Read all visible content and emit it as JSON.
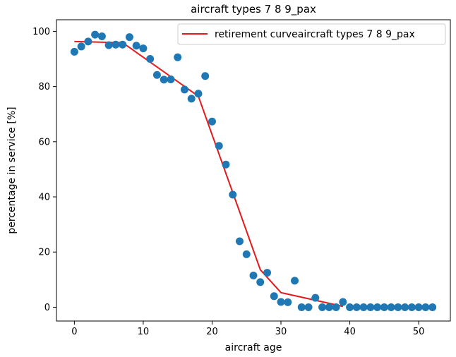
{
  "chart_data": {
    "type": "scatter",
    "title": "aircraft types 7 8 9_pax",
    "xlabel": "aircraft age",
    "ylabel": "percentage in service [%]",
    "xlim": [
      -2.6,
      54.6
    ],
    "ylim": [
      -5.0,
      104.2
    ],
    "xticks": [
      0,
      10,
      20,
      30,
      40,
      50
    ],
    "yticks": [
      0,
      20,
      40,
      60,
      80,
      100
    ],
    "grid": false,
    "legend_position": "top-right",
    "series": [
      {
        "kind": "scatter",
        "color": "#1f77b4",
        "x": [
          0,
          1,
          2,
          3,
          4,
          5,
          6,
          7,
          8,
          9,
          10,
          11,
          12,
          13,
          14,
          15,
          16,
          17,
          18,
          19,
          20,
          21,
          22,
          23,
          24,
          25,
          26,
          27,
          28,
          29,
          30,
          31,
          32,
          33,
          34,
          35,
          36,
          37,
          38,
          39,
          40,
          41,
          42,
          43,
          44,
          45,
          46,
          47,
          48,
          49,
          50,
          51,
          52
        ],
        "y": [
          92.6,
          94.5,
          96.3,
          98.8,
          98.2,
          95.0,
          95.2,
          95.2,
          97.9,
          94.8,
          93.8,
          90.0,
          84.2,
          82.5,
          82.6,
          90.6,
          78.9,
          75.6,
          77.4,
          83.8,
          67.3,
          58.5,
          51.7,
          40.8,
          23.9,
          19.2,
          11.5,
          9.1,
          12.5,
          4.0,
          1.9,
          1.8,
          9.6,
          0,
          0,
          3.4,
          0,
          0,
          0,
          1.9,
          0,
          0,
          0,
          0,
          0,
          0,
          0,
          0,
          0,
          0,
          0,
          0,
          0
        ]
      },
      {
        "kind": "line",
        "name": "retirement curveaircraft types 7 8 9_pax",
        "color": "#e31a1c",
        "x": [
          0,
          7,
          18,
          27,
          30,
          39
        ],
        "y": [
          96.3,
          95.9,
          76.5,
          13.6,
          5.3,
          0.3
        ]
      }
    ]
  }
}
